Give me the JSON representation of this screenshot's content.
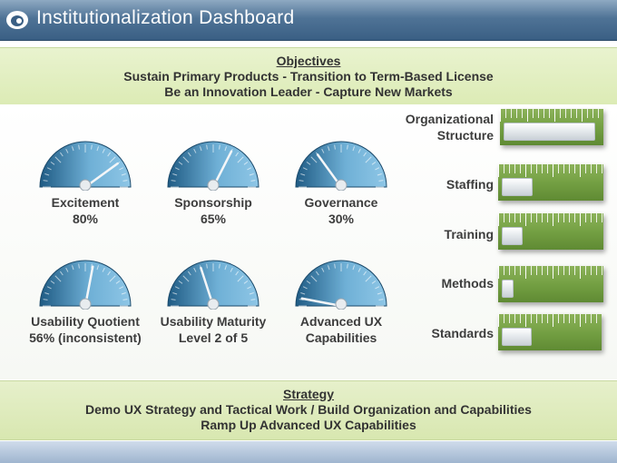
{
  "header": {
    "title": "Institutionalization Dashboard"
  },
  "objectives": {
    "heading": "Objectives",
    "lines": [
      "Sustain Primary Products - Transition to Term-Based License",
      "Be an Innovation Leader -  Capture New Markets"
    ]
  },
  "gauges": [
    {
      "label": "Excitement",
      "value_text": "80%",
      "level": 0.8
    },
    {
      "label": "Sponsorship",
      "value_text": "65%",
      "level": 0.65
    },
    {
      "label": "Governance",
      "value_text": "30%",
      "level": 0.3
    },
    {
      "label": "Usability Quotient",
      "value_text": "56% (inconsistent)",
      "level": 0.56
    },
    {
      "label": "Usability Maturity",
      "value_text": "Level 2 of 5",
      "level": 0.4
    },
    {
      "label": "Advanced UX",
      "value_text": "Capabilities",
      "level": 0.06
    }
  ],
  "bars": [
    {
      "label_lines": [
        "Organizational",
        "Structure"
      ],
      "level": 0.95
    },
    {
      "label_lines": [
        "Staffing"
      ],
      "level": 0.3
    },
    {
      "label_lines": [
        "Training"
      ],
      "level": 0.2
    },
    {
      "label_lines": [
        "Methods"
      ],
      "level": 0.1
    },
    {
      "label_lines": [
        "Standards"
      ],
      "level": 0.3
    }
  ],
  "strategy": {
    "heading": "Strategy",
    "lines": [
      "Demo UX Strategy and Tactical Work /  Build Organization and Capabilities",
      "Ramp Up Advanced UX Capabilities"
    ]
  },
  "colors": {
    "gauge_dark": "#1f5b84",
    "gauge_light": "#6fb0d6",
    "bar_green": "#74a043",
    "band_green": "#e3eec3",
    "title_blue": "#4f7396"
  }
}
